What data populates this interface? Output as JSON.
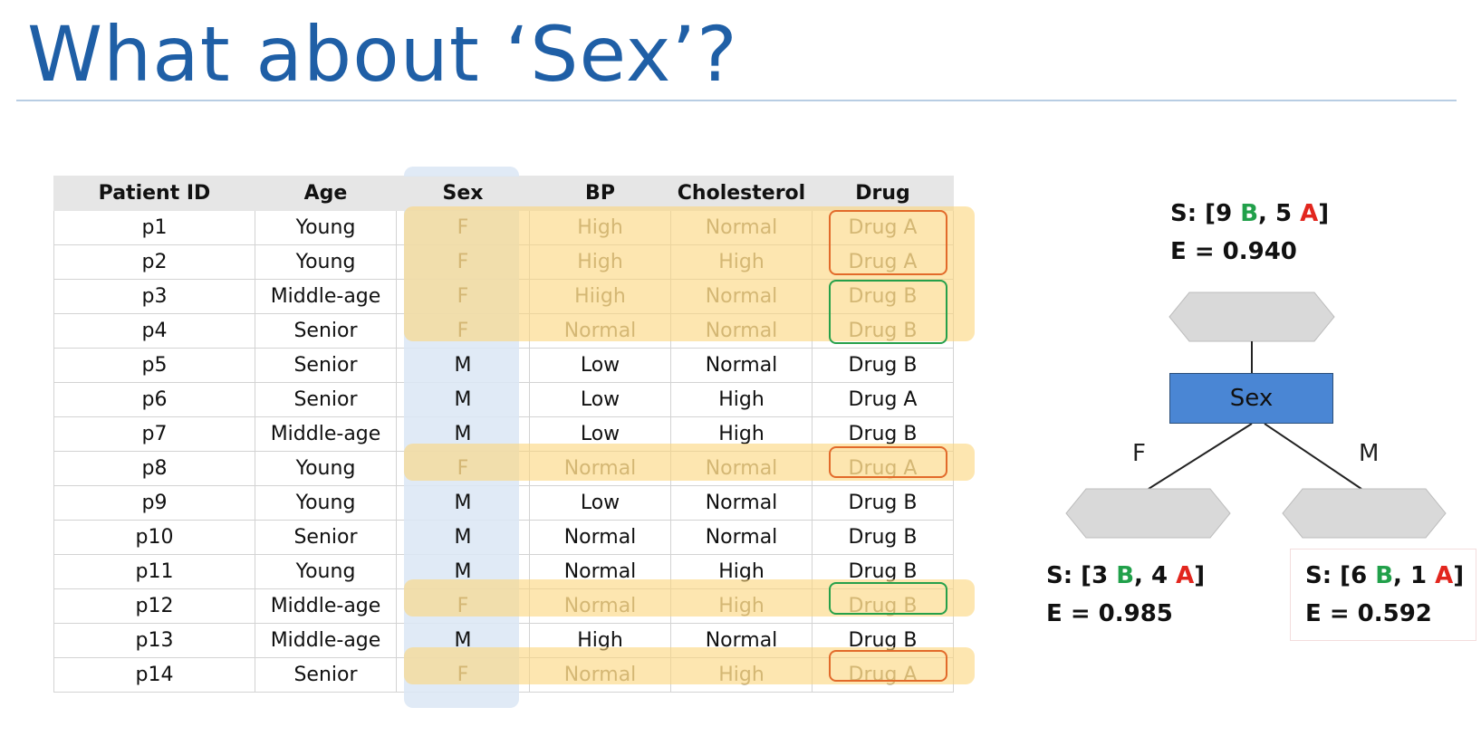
{
  "title": "What about ‘Sex’?",
  "table": {
    "headers": [
      "Patient ID",
      "Age",
      "Sex",
      "BP",
      "Cholesterol",
      "Drug"
    ],
    "rows": [
      [
        "p1",
        "Young",
        "F",
        "High",
        "Normal",
        "Drug A"
      ],
      [
        "p2",
        "Young",
        "F",
        "High",
        "High",
        "Drug A"
      ],
      [
        "p3",
        "Middle-age",
        "F",
        "Hiigh",
        "Normal",
        "Drug B"
      ],
      [
        "p4",
        "Senior",
        "F",
        "Normal",
        "Normal",
        "Drug B"
      ],
      [
        "p5",
        "Senior",
        "M",
        "Low",
        "Normal",
        "Drug B"
      ],
      [
        "p6",
        "Senior",
        "M",
        "Low",
        "High",
        "Drug A"
      ],
      [
        "p7",
        "Middle-age",
        "M",
        "Low",
        "High",
        "Drug B"
      ],
      [
        "p8",
        "Young",
        "F",
        "Normal",
        "Normal",
        "Drug A"
      ],
      [
        "p9",
        "Young",
        "M",
        "Low",
        "Normal",
        "Drug B"
      ],
      [
        "p10",
        "Senior",
        "M",
        "Normal",
        "Normal",
        "Drug B"
      ],
      [
        "p11",
        "Young",
        "M",
        "Normal",
        "High",
        "Drug B"
      ],
      [
        "p12",
        "Middle-age",
        "F",
        "Normal",
        "High",
        "Drug B"
      ],
      [
        "p13",
        "Middle-age",
        "M",
        "High",
        "Normal",
        "Drug B"
      ],
      [
        "p14",
        "Senior",
        "F",
        "Normal",
        "High",
        "Drug A"
      ]
    ]
  },
  "tree": {
    "root": {
      "s_prefix": "S: [",
      "b_count": "9",
      "b_letter": "B",
      "sep": ", ",
      "a_count": "5",
      "a_letter": "A",
      "s_suffix": "]",
      "entropy": "E = 0.940"
    },
    "node_label": "Sex",
    "branch_left": "F",
    "branch_right": "M",
    "leaf_left": {
      "s_prefix": "S: [",
      "b_count": "3",
      "b_letter": "B",
      "sep": ", ",
      "a_count": "4",
      "a_letter": "A",
      "s_suffix": "]",
      "entropy": "E = 0.985"
    },
    "leaf_right": {
      "s_prefix": "S: [",
      "b_count": "6",
      "b_letter": "B",
      "sep": ", ",
      "a_count": "1",
      "a_letter": "A",
      "s_suffix": "]",
      "entropy": "E = 0.592"
    }
  },
  "colors": {
    "title": "#1f5fa6",
    "sex_column_highlight": "#dbe6f5",
    "female_row_highlight": "#fcd57c",
    "drug_a_outline": "#e26a2a",
    "drug_b_outline": "#26a04a",
    "node_fill": "#4a86d4",
    "hexagon_fill": "#d9d9d9",
    "b_text": "#21a04a",
    "a_text": "#e2261e"
  }
}
